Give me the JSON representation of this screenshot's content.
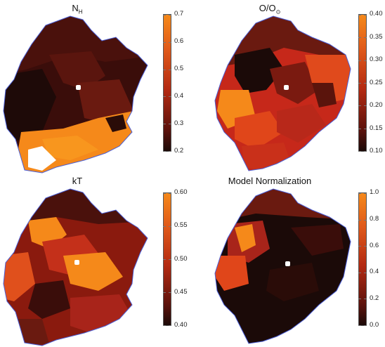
{
  "panels": [
    {
      "id": "nh",
      "title_main": "N",
      "title_sub": "H",
      "ticks": [
        "0.7",
        "0.6",
        "0.5",
        "0.4",
        "0.3",
        "0.2"
      ]
    },
    {
      "id": "oo",
      "title_main": "O/O",
      "title_sub": "⊙",
      "ticks": [
        "0.40",
        "0.35",
        "0.30",
        "0.25",
        "0.20",
        "0.15",
        "0.10"
      ]
    },
    {
      "id": "kt",
      "title_main": "kT",
      "title_sub": "",
      "ticks": [
        "0.60",
        "0.55",
        "0.50",
        "0.45",
        "0.40"
      ]
    },
    {
      "id": "norm",
      "title_main": "Model Normalization",
      "title_sub": "",
      "ticks": [
        "1.0",
        "0.8",
        "0.6",
        "0.4",
        "0.2",
        "0.0"
      ]
    }
  ],
  "colors": {
    "dark": "#1b0a08",
    "mid": "#8a1a0e",
    "red": "#d8301a",
    "orange": "#f5891a",
    "outline": "#4b5fd6",
    "marker": "#ffffff"
  }
}
